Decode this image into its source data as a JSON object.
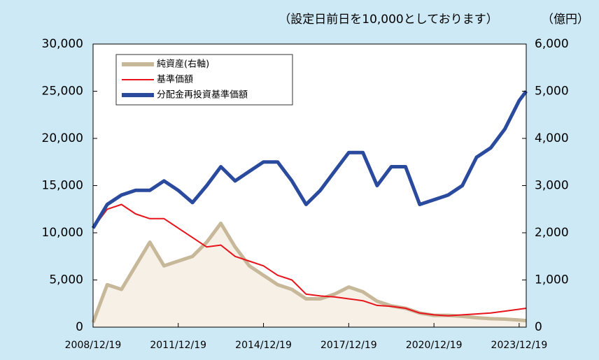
{
  "chart_data": {
    "type": "line",
    "subtitle": "（設定日前日を10,000としております）",
    "y2_unit": "（億円）",
    "x": [
      "2008/12/19",
      "2009/06/19",
      "2009/12/19",
      "2010/06/19",
      "2010/12/19",
      "2011/06/19",
      "2011/12/19",
      "2012/06/19",
      "2012/12/19",
      "2013/06/19",
      "2013/12/19",
      "2014/06/19",
      "2014/12/19",
      "2015/06/19",
      "2015/12/19",
      "2016/06/19",
      "2016/12/19",
      "2017/06/19",
      "2017/12/19",
      "2018/06/19",
      "2018/12/19",
      "2019/06/19",
      "2019/12/19",
      "2020/06/19",
      "2020/12/19",
      "2021/06/19",
      "2021/12/19",
      "2022/06/19",
      "2022/12/19",
      "2023/06/19",
      "2023/12/19",
      "2024/03/19"
    ],
    "series": [
      {
        "name": "純資産(右軸)",
        "color": "#c8b89a",
        "fill": "#f6f0e7",
        "axis": "y2",
        "values": [
          100,
          900,
          800,
          1300,
          1800,
          1300,
          1400,
          1500,
          1800,
          2200,
          1700,
          1300,
          1100,
          900,
          800,
          600,
          600,
          700,
          850,
          750,
          550,
          450,
          400,
          300,
          250,
          250,
          230,
          200,
          180,
          170,
          150,
          140
        ]
      },
      {
        "name": "基準価額",
        "color": "#e8141c",
        "values": [
          10500,
          12500,
          13000,
          12000,
          11500,
          11500,
          10500,
          9500,
          8500,
          8700,
          7500,
          7000,
          6500,
          5500,
          5000,
          3500,
          3300,
          3200,
          3000,
          2800,
          2300,
          2200,
          2000,
          1500,
          1300,
          1200,
          1300,
          1400,
          1500,
          1700,
          1900,
          2000
        ]
      },
      {
        "name": "分配金再投資基準価額",
        "color": "#2a4a9e",
        "values": [
          10500,
          13000,
          14000,
          14500,
          14500,
          15500,
          14500,
          13200,
          15000,
          17000,
          15500,
          16500,
          17500,
          17500,
          15500,
          13000,
          14500,
          16500,
          18500,
          18500,
          15000,
          17000,
          17000,
          13000,
          13500,
          14000,
          15000,
          18000,
          19000,
          21000,
          24000,
          25000
        ]
      }
    ],
    "xlim": [
      "2008/12/19",
      "2024/03/19"
    ],
    "xticks": [
      "2008/12/19",
      "2011/12/19",
      "2014/12/19",
      "2017/12/19",
      "2020/12/19",
      "2023/12/19"
    ],
    "ylim": [
      0,
      30000
    ],
    "yticks": [
      0,
      {
        "value": 5000,
        "label": "5,000"
      },
      {
        "value": 10000,
        "label": "10,000"
      },
      {
        "value": 15000,
        "label": "15,000"
      },
      {
        "value": 20000,
        "label": "20,000"
      },
      {
        "value": 25000,
        "label": "25,000"
      },
      {
        "value": 30000,
        "label": "30,000"
      }
    ],
    "y2lim": [
      0,
      6000
    ],
    "y2ticks": [
      0,
      {
        "value": 1000,
        "label": "1,000"
      },
      {
        "value": 2000,
        "label": "2,000"
      },
      {
        "value": 3000,
        "label": "3,000"
      },
      {
        "value": 4000,
        "label": "4,000"
      },
      {
        "value": 5000,
        "label": "5,000"
      },
      {
        "value": 6000,
        "label": "6,000"
      }
    ],
    "legend": "upper-left"
  }
}
